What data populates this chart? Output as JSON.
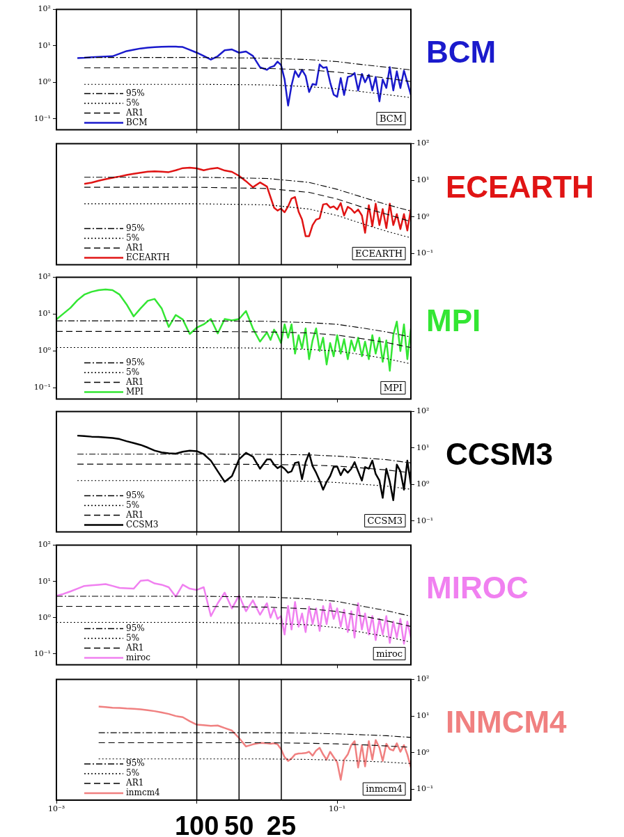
{
  "chart_data": [
    {
      "type": "line",
      "title": "BCM",
      "annotations": [
        "BCM"
      ],
      "log": "xy",
      "legend": "bottom left",
      "tick_labels": "y",
      "xlim": [
        0.001,
        0.335
      ],
      "xticks": [
        {
          "value": 0.01,
          "label": null
        },
        {
          "value": 0.1,
          "label": null
        }
      ],
      "ylim": [
        0.05,
        100
      ],
      "yticks": [
        {
          "value": 0.1,
          "label": "10⁻¹"
        },
        {
          "value": 1,
          "label": "10⁰"
        },
        {
          "value": 10,
          "label": "10¹"
        },
        {
          "value": 100,
          "label": "10²"
        }
      ],
      "ref_lines": [
        {
          "axis": "x",
          "value": 0.01
        },
        {
          "axis": "x",
          "value": 0.02
        },
        {
          "axis": "x",
          "value": 0.04
        }
      ],
      "series": [
        {
          "name": "95%",
          "color": "#000000",
          "line_style": "dashdot",
          "x": [
            0.00158,
            0.01,
            0.0316,
            0.0631,
            0.1,
            0.158,
            0.224,
            0.335
          ],
          "values": [
            4.8,
            4.8,
            4.6,
            4.2,
            3.7,
            3.0,
            2.6,
            2.2
          ]
        },
        {
          "name": "5%",
          "color": "#000000",
          "line_style": "dotted",
          "x": [
            0.00158,
            0.01,
            0.0316,
            0.0631,
            0.1,
            0.158,
            0.224,
            0.335
          ],
          "values": [
            0.88,
            0.88,
            0.85,
            0.76,
            0.66,
            0.54,
            0.46,
            0.38
          ]
        },
        {
          "name": "AR1",
          "color": "#000000",
          "line_style": "dashed",
          "x": [
            0.00158,
            0.01,
            0.0316,
            0.0631,
            0.1,
            0.158,
            0.224,
            0.335
          ],
          "values": [
            2.5,
            2.5,
            2.4,
            2.2,
            1.9,
            1.55,
            1.3,
            1.05
          ]
        },
        {
          "name": "BCM",
          "color": "#1a1acc",
          "line_style": "solid",
          "x": [
            0.00141,
            0.00158,
            0.00178,
            0.002,
            0.00224,
            0.00251,
            0.00282,
            0.00316,
            0.00355,
            0.00398,
            0.00447,
            0.00501,
            0.00562,
            0.00631,
            0.00708,
            0.00794,
            0.00891,
            0.01,
            0.0112,
            0.0126,
            0.0141,
            0.0158,
            0.0178,
            0.02,
            0.0224,
            0.0251,
            0.0282,
            0.0316,
            0.0335,
            0.0355,
            0.0376,
            0.0398,
            0.0422,
            0.0447,
            0.0473,
            0.0501,
            0.0531,
            0.0562,
            0.0596,
            0.0631,
            0.0668,
            0.0708,
            0.075,
            0.0794,
            0.0841,
            0.0891,
            0.0944,
            0.1,
            0.106,
            0.112,
            0.119,
            0.126,
            0.133,
            0.141,
            0.15,
            0.158,
            0.168,
            0.178,
            0.188,
            0.2,
            0.211,
            0.224,
            0.237,
            0.251,
            0.266,
            0.282,
            0.299,
            0.316,
            0.335
          ],
          "values": [
            4.6,
            4.7,
            4.9,
            5.0,
            5.1,
            5.2,
            6.1,
            7.2,
            7.8,
            8.5,
            8.9,
            9.2,
            9.4,
            9.5,
            9.5,
            9.3,
            7.8,
            6.5,
            5.3,
            4.2,
            5.2,
            7.6,
            8.0,
            6.5,
            7.0,
            5.3,
            2.6,
            2.2,
            2.6,
            2.8,
            3.7,
            3.0,
            1.2,
            0.23,
            0.82,
            2.05,
            1.4,
            2.2,
            1.5,
            0.54,
            0.9,
            0.85,
            3.1,
            2.5,
            2.6,
            1.0,
            0.46,
            0.4,
            1.3,
            0.45,
            1.4,
            1.5,
            1.8,
            0.6,
            1.7,
            1.0,
            1.6,
            0.6,
            1.4,
            0.3,
            1.2,
            0.7,
            2.6,
            0.6,
            2.0,
            0.7,
            2.1,
            1.0,
            0.45
          ]
        }
      ]
    },
    {
      "type": "line",
      "title": "ECEARTH",
      "annotations": [
        "ECEARTH"
      ],
      "log": "xy",
      "legend": "bottom left",
      "tick_labels": "y",
      "xlim": [
        0.001,
        0.335
      ],
      "xticks": [
        {
          "value": 0.01,
          "label": null
        },
        {
          "value": 0.1,
          "label": null
        }
      ],
      "ylim": [
        0.05,
        100
      ],
      "yticks": [
        {
          "value": 0.1,
          "label": "10⁻¹"
        },
        {
          "value": 1,
          "label": "10⁰"
        },
        {
          "value": 10,
          "label": "10¹"
        },
        {
          "value": 100,
          "label": "10²"
        }
      ],
      "ref_lines": [
        {
          "axis": "x",
          "value": 0.01
        },
        {
          "axis": "x",
          "value": 0.02
        },
        {
          "axis": "x",
          "value": 0.04
        }
      ],
      "series": [
        {
          "name": "95%",
          "color": "#000000",
          "line_style": "dashdot",
          "x": [
            0.00158,
            0.01,
            0.0316,
            0.0631,
            0.1,
            0.158,
            0.224,
            0.335
          ],
          "values": [
            12.2,
            12.2,
            11.3,
            8.8,
            5.7,
            3.3,
            2.2,
            1.45
          ]
        },
        {
          "name": "5%",
          "color": "#000000",
          "line_style": "dotted",
          "x": [
            0.00158,
            0.01,
            0.0316,
            0.0631,
            0.1,
            0.158,
            0.224,
            0.335
          ],
          "values": [
            2.3,
            2.3,
            2.15,
            1.65,
            1.1,
            0.62,
            0.41,
            0.27
          ]
        },
        {
          "name": "AR1",
          "color": "#000000",
          "line_style": "dashed",
          "x": [
            0.00158,
            0.01,
            0.0316,
            0.0631,
            0.1,
            0.158,
            0.224,
            0.335
          ],
          "values": [
            6.5,
            6.5,
            6.0,
            4.7,
            3.1,
            1.75,
            1.2,
            0.75
          ]
        },
        {
          "name": "ECEARTH",
          "color": "#e01414",
          "line_style": "solid",
          "x": [
            0.00158,
            0.00178,
            0.002,
            0.00224,
            0.00251,
            0.00282,
            0.00316,
            0.00355,
            0.00398,
            0.00447,
            0.00501,
            0.00562,
            0.00631,
            0.00708,
            0.00794,
            0.00891,
            0.01,
            0.0112,
            0.0126,
            0.0141,
            0.0158,
            0.0178,
            0.02,
            0.0224,
            0.0251,
            0.0282,
            0.0316,
            0.0335,
            0.0355,
            0.0376,
            0.0398,
            0.0422,
            0.0447,
            0.0473,
            0.0501,
            0.0531,
            0.0562,
            0.0596,
            0.0631,
            0.0668,
            0.0708,
            0.075,
            0.0794,
            0.0841,
            0.0891,
            0.0944,
            0.1,
            0.106,
            0.112,
            0.119,
            0.126,
            0.133,
            0.141,
            0.15,
            0.158,
            0.168,
            0.178,
            0.188,
            0.2,
            0.211,
            0.224,
            0.237,
            0.251,
            0.266,
            0.282,
            0.299,
            0.316,
            0.335
          ],
          "values": [
            8.0,
            8.7,
            9.8,
            10.8,
            11.8,
            12.8,
            14,
            15.2,
            16.2,
            17.3,
            17.6,
            17.3,
            16.8,
            18.8,
            21.6,
            22.3,
            21.2,
            18.9,
            20.9,
            21.9,
            18.6,
            17.1,
            13.3,
            9.5,
            6.5,
            8.8,
            6.8,
            3.5,
            1.8,
            1.5,
            1.7,
            1.35,
            1.95,
            3.2,
            3.5,
            1.4,
            0.85,
            0.3,
            0.3,
            0.6,
            0.85,
            0.92,
            2.2,
            2.3,
            1.8,
            1.95,
            1.6,
            2.4,
            1.1,
            1.9,
            1.65,
            1.3,
            1.6,
            1.1,
            0.37,
            2.1,
            0.56,
            2.3,
            0.6,
            1.65,
            0.5,
            2.3,
            0.6,
            1.2,
            0.47,
            1.2,
            0.43,
            1.65
          ]
        }
      ]
    },
    {
      "type": "line",
      "title": "MPI",
      "annotations": [
        "MPI"
      ],
      "log": "xy",
      "legend": "bottom left",
      "tick_labels": "y",
      "xlim": [
        0.001,
        0.335
      ],
      "xticks": [
        {
          "value": 0.01,
          "label": null
        },
        {
          "value": 0.1,
          "label": null
        }
      ],
      "ylim": [
        0.05,
        100
      ],
      "yticks": [
        {
          "value": 0.1,
          "label": "10⁻¹"
        },
        {
          "value": 1,
          "label": "10⁰"
        },
        {
          "value": 10,
          "label": "10¹"
        },
        {
          "value": 100,
          "label": "10²"
        }
      ],
      "ref_lines": [
        {
          "axis": "x",
          "value": 0.01
        },
        {
          "axis": "x",
          "value": 0.02
        },
        {
          "axis": "x",
          "value": 0.04
        }
      ],
      "series": [
        {
          "name": "95%",
          "color": "#000000",
          "line_style": "dashdot",
          "x": [
            0.001,
            0.01,
            0.0316,
            0.0631,
            0.1,
            0.158,
            0.224,
            0.335
          ],
          "values": [
            6.6,
            6.6,
            6.4,
            5.9,
            5.3,
            4.1,
            3.3,
            2.4
          ]
        },
        {
          "name": "5%",
          "color": "#000000",
          "line_style": "dotted",
          "x": [
            0.001,
            0.01,
            0.0316,
            0.0631,
            0.1,
            0.158,
            0.224,
            0.335
          ],
          "values": [
            1.24,
            1.24,
            1.2,
            1.1,
            1.0,
            0.77,
            0.62,
            0.45
          ]
        },
        {
          "name": "AR1",
          "color": "#000000",
          "line_style": "dashed",
          "x": [
            0.001,
            0.01,
            0.0316,
            0.0631,
            0.1,
            0.158,
            0.224,
            0.335
          ],
          "values": [
            3.4,
            3.4,
            3.3,
            3.1,
            2.7,
            2.1,
            1.7,
            1.24
          ]
        },
        {
          "name": "MPI",
          "color": "#33e633",
          "line_style": "solid",
          "x": [
            0.001,
            0.00112,
            0.00126,
            0.00141,
            0.00158,
            0.00178,
            0.002,
            0.00224,
            0.00251,
            0.00282,
            0.00316,
            0.00355,
            0.00398,
            0.00447,
            0.00501,
            0.00562,
            0.00631,
            0.00708,
            0.00794,
            0.00891,
            0.01,
            0.0112,
            0.0126,
            0.0141,
            0.0158,
            0.0178,
            0.02,
            0.0224,
            0.0251,
            0.0282,
            0.0316,
            0.0335,
            0.0355,
            0.0376,
            0.0398,
            0.0422,
            0.0447,
            0.0473,
            0.0501,
            0.0531,
            0.0562,
            0.0596,
            0.0631,
            0.0668,
            0.0708,
            0.075,
            0.0794,
            0.0841,
            0.0891,
            0.0944,
            0.1,
            0.106,
            0.112,
            0.119,
            0.126,
            0.133,
            0.141,
            0.15,
            0.158,
            0.168,
            0.178,
            0.188,
            0.2,
            0.211,
            0.224,
            0.237,
            0.251,
            0.266,
            0.282,
            0.299,
            0.316,
            0.335
          ],
          "values": [
            7.2,
            10.3,
            14.9,
            23.8,
            34,
            40.5,
            44.9,
            47,
            44.9,
            34,
            18.5,
            8.7,
            14.4,
            23,
            25.9,
            14.4,
            4.5,
            9.5,
            7.2,
            2.9,
            4.3,
            5.3,
            7.4,
            3.0,
            7.4,
            6.8,
            7.4,
            12.2,
            4.1,
            1.8,
            3.2,
            2.0,
            3.8,
            2.7,
            1.65,
            5.3,
            2.3,
            5.3,
            0.85,
            2.7,
            1.18,
            4.1,
            0.6,
            1.95,
            4.1,
            1.0,
            2.3,
            0.43,
            1.65,
            0.72,
            2.7,
            0.85,
            2.1,
            0.6,
            1.95,
            1.0,
            2.3,
            0.72,
            1.8,
            0.6,
            2.7,
            0.85,
            2.3,
            0.51,
            1.95,
            0.29,
            2.7,
            6.3,
            1.0,
            5.3,
            0.6,
            4.1
          ]
        }
      ]
    },
    {
      "type": "line",
      "title": "CCSM3",
      "annotations": [
        "CCSM3"
      ],
      "log": "xy",
      "legend": "bottom left",
      "tick_labels": "y",
      "xlim": [
        0.001,
        0.335
      ],
      "xticks": [
        {
          "value": 0.01,
          "label": null
        },
        {
          "value": 0.1,
          "label": null
        }
      ],
      "ylim": [
        0.05,
        100
      ],
      "yticks": [
        {
          "value": 0.1,
          "label": "10⁻¹"
        },
        {
          "value": 1,
          "label": "10⁰"
        },
        {
          "value": 10,
          "label": "10¹"
        },
        {
          "value": 100,
          "label": "10²"
        }
      ],
      "ref_lines": [
        {
          "axis": "x",
          "value": 0.01
        },
        {
          "axis": "x",
          "value": 0.02
        },
        {
          "axis": "x",
          "value": 0.04
        }
      ],
      "series": [
        {
          "name": "95%",
          "color": "#000000",
          "line_style": "dashdot",
          "x": [
            0.00141,
            0.01,
            0.0316,
            0.0631,
            0.1,
            0.158,
            0.224,
            0.335
          ],
          "values": [
            6.8,
            6.8,
            6.7,
            6.5,
            6.0,
            5.3,
            4.8,
            3.9
          ]
        },
        {
          "name": "5%",
          "color": "#000000",
          "line_style": "dotted",
          "x": [
            0.00141,
            0.01,
            0.0316,
            0.0631,
            0.1,
            0.158,
            0.224,
            0.335
          ],
          "values": [
            1.28,
            1.28,
            1.27,
            1.22,
            1.13,
            1.0,
            0.9,
            0.74
          ]
        },
        {
          "name": "AR1",
          "color": "#000000",
          "line_style": "dashed",
          "x": [
            0.00141,
            0.01,
            0.0316,
            0.0631,
            0.1,
            0.158,
            0.224,
            0.335
          ],
          "values": [
            3.6,
            3.6,
            3.55,
            3.4,
            3.2,
            2.8,
            2.5,
            2.1
          ]
        },
        {
          "name": "CCSM3",
          "color": "#000000",
          "line_style": "solid",
          "x": [
            0.00141,
            0.00158,
            0.00178,
            0.002,
            0.00224,
            0.00251,
            0.00282,
            0.00316,
            0.00355,
            0.00398,
            0.00447,
            0.00501,
            0.00562,
            0.00631,
            0.00708,
            0.00794,
            0.00891,
            0.01,
            0.0112,
            0.0126,
            0.0141,
            0.0158,
            0.0178,
            0.02,
            0.0224,
            0.0251,
            0.0282,
            0.0316,
            0.0335,
            0.0355,
            0.0376,
            0.0398,
            0.0422,
            0.0447,
            0.0473,
            0.0501,
            0.0531,
            0.0562,
            0.0596,
            0.0631,
            0.0668,
            0.0708,
            0.075,
            0.0794,
            0.0841,
            0.0891,
            0.0944,
            0.1,
            0.106,
            0.112,
            0.119,
            0.126,
            0.133,
            0.141,
            0.15,
            0.158,
            0.168,
            0.178,
            0.188,
            0.2,
            0.211,
            0.224,
            0.237,
            0.251,
            0.266,
            0.282,
            0.299,
            0.316,
            0.335
          ],
          "values": [
            21.9,
            21.2,
            20.5,
            20.2,
            19.6,
            18.9,
            17.6,
            15.4,
            13.7,
            12.2,
            10.3,
            8.5,
            7.6,
            7.2,
            7.0,
            7.9,
            8.5,
            8.2,
            6.8,
            4.5,
            2.3,
            1.18,
            1.7,
            4.9,
            7.4,
            5.8,
            2.7,
            4.9,
            4.9,
            3.5,
            2.8,
            3.2,
            2.7,
            2.1,
            2.3,
            3.9,
            4.1,
            1.4,
            4.1,
            7.2,
            3.2,
            2.1,
            1.28,
            0.72,
            1.18,
            1.7,
            3.0,
            3.1,
            1.8,
            2.7,
            2.1,
            2.7,
            4.1,
            2.3,
            1.28,
            3.0,
            2.7,
            4.5,
            1.95,
            1.28,
            0.43,
            2.7,
            1.18,
            0.37,
            3.5,
            2.3,
            0.72,
            4.5,
            1.0
          ]
        }
      ]
    },
    {
      "type": "line",
      "title": "MIROC",
      "annotations": [
        "miroc"
      ],
      "log": "xy",
      "legend": "bottom left",
      "tick_labels": "y",
      "xlim": [
        0.001,
        0.335
      ],
      "xticks": [
        {
          "value": 0.01,
          "label": null
        },
        {
          "value": 0.1,
          "label": null
        }
      ],
      "ylim": [
        0.05,
        100
      ],
      "yticks": [
        {
          "value": 0.1,
          "label": "10⁻¹"
        },
        {
          "value": 1,
          "label": "10⁰"
        },
        {
          "value": 10,
          "label": "10¹"
        },
        {
          "value": 100,
          "label": "10²"
        }
      ],
      "ref_lines": [
        {
          "axis": "x",
          "value": 0.01
        },
        {
          "axis": "x",
          "value": 0.02
        },
        {
          "axis": "x",
          "value": 0.04
        }
      ],
      "series": [
        {
          "name": "95%",
          "color": "#000000",
          "line_style": "dashdot",
          "x": [
            0.001,
            0.01,
            0.0316,
            0.0631,
            0.1,
            0.158,
            0.224,
            0.335
          ],
          "values": [
            3.9,
            3.9,
            3.7,
            3.3,
            2.8,
            2.0,
            1.56,
            1.09
          ]
        },
        {
          "name": "5%",
          "color": "#000000",
          "line_style": "dotted",
          "x": [
            0.001,
            0.01,
            0.0316,
            0.0631,
            0.1,
            0.158,
            0.224,
            0.335
          ],
          "values": [
            0.74,
            0.74,
            0.7,
            0.63,
            0.53,
            0.38,
            0.3,
            0.21
          ]
        },
        {
          "name": "AR1",
          "color": "#000000",
          "line_style": "dashed",
          "x": [
            0.001,
            0.01,
            0.0316,
            0.0631,
            0.1,
            0.158,
            0.224,
            0.335
          ],
          "values": [
            2.05,
            2.05,
            1.95,
            1.75,
            1.48,
            1.07,
            0.82,
            0.57
          ]
        },
        {
          "name": "miroc",
          "color": "#f080f0",
          "line_style": "solid",
          "x": [
            0.001,
            0.00112,
            0.00126,
            0.00141,
            0.00158,
            0.00178,
            0.002,
            0.00224,
            0.00251,
            0.00282,
            0.00316,
            0.00355,
            0.00398,
            0.00447,
            0.00501,
            0.00562,
            0.00631,
            0.00708,
            0.00794,
            0.00891,
            0.01,
            0.0112,
            0.0126,
            0.0141,
            0.0158,
            0.0178,
            0.02,
            0.0224,
            0.0251,
            0.0282,
            0.0316,
            0.0335,
            0.0355,
            0.0376,
            0.0398,
            0.0422,
            0.0447,
            0.0473,
            0.0501,
            0.0531,
            0.0562,
            0.0596,
            0.0631,
            0.0668,
            0.0708,
            0.075,
            0.0794,
            0.0841,
            0.0891,
            0.0944,
            0.1,
            0.106,
            0.112,
            0.119,
            0.126,
            0.133,
            0.141,
            0.15,
            0.158,
            0.168,
            0.178,
            0.188,
            0.2,
            0.211,
            0.224,
            0.237,
            0.251,
            0.266,
            0.282,
            0.299,
            0.316,
            0.335
          ],
          "values": [
            4.0,
            4.5,
            5.3,
            6.3,
            7.5,
            7.8,
            8.1,
            8.4,
            7.5,
            6.6,
            6.5,
            6.3,
            10.4,
            10.9,
            8.8,
            8.1,
            6.9,
            3.8,
            8.1,
            6.3,
            5.8,
            6.9,
            1.1,
            2.5,
            4.9,
            1.8,
            4.1,
            1.5,
            3.0,
            1.2,
            2.5,
            1.0,
            1.8,
            0.92,
            1.1,
            0.34,
            2.1,
            0.47,
            2.7,
            0.56,
            1.3,
            0.4,
            2.0,
            0.66,
            1.8,
            0.43,
            2.1,
            0.66,
            2.5,
            0.92,
            1.8,
            0.56,
            1.65,
            0.4,
            1.5,
            0.28,
            2.5,
            0.47,
            1.3,
            0.34,
            1.1,
            0.24,
            0.92,
            0.34,
            1.1,
            0.2,
            0.78,
            0.28,
            0.92,
            0.19,
            0.78,
            0.28
          ]
        }
      ]
    },
    {
      "type": "line",
      "title": "INMCM4",
      "annotations": [
        "inmcm4",
        "100",
        "50",
        "25"
      ],
      "log": "xy",
      "legend": "bottom left",
      "xlim": [
        0.001,
        0.335
      ],
      "xticks": [
        {
          "value": 0.001,
          "label": "10⁻³"
        },
        {
          "value": 0.01,
          "label": null
        },
        {
          "value": 0.1,
          "label": "10⁻¹"
        }
      ],
      "ylim": [
        0.05,
        100
      ],
      "yticks": [
        {
          "value": 0.1,
          "label": "10⁻¹"
        },
        {
          "value": 1,
          "label": "10⁰"
        },
        {
          "value": 10,
          "label": "10¹"
        },
        {
          "value": 100,
          "label": "10²"
        }
      ],
      "ref_lines": [
        {
          "axis": "x",
          "value": 0.01
        },
        {
          "axis": "x",
          "value": 0.02
        },
        {
          "axis": "x",
          "value": 0.04
        }
      ],
      "series": [
        {
          "name": "95%",
          "color": "#000000",
          "line_style": "dashdot",
          "x": [
            0.002,
            0.01,
            0.0316,
            0.0631,
            0.1,
            0.158,
            0.224,
            0.335
          ],
          "values": [
            3.5,
            3.5,
            3.5,
            3.4,
            3.25,
            3.05,
            2.9,
            2.6
          ]
        },
        {
          "name": "5%",
          "color": "#000000",
          "line_style": "dotted",
          "x": [
            0.002,
            0.01,
            0.0316,
            0.0631,
            0.1,
            0.158,
            0.224,
            0.335
          ],
          "values": [
            0.67,
            0.67,
            0.67,
            0.65,
            0.62,
            0.58,
            0.55,
            0.5
          ]
        },
        {
          "name": "AR1",
          "color": "#000000",
          "line_style": "dashed",
          "x": [
            0.002,
            0.01,
            0.0316,
            0.0631,
            0.1,
            0.158,
            0.224,
            0.335
          ],
          "values": [
            1.86,
            1.86,
            1.86,
            1.8,
            1.73,
            1.62,
            1.52,
            1.4
          ]
        },
        {
          "name": "inmcm4",
          "color": "#f08080",
          "line_style": "solid",
          "x": [
            0.002,
            0.00224,
            0.00251,
            0.00282,
            0.00316,
            0.00355,
            0.00398,
            0.00447,
            0.00501,
            0.00562,
            0.00631,
            0.00708,
            0.00794,
            0.00891,
            0.01,
            0.0112,
            0.0126,
            0.0141,
            0.0158,
            0.0178,
            0.02,
            0.0224,
            0.0251,
            0.0282,
            0.0316,
            0.0335,
            0.0355,
            0.0376,
            0.0398,
            0.0422,
            0.0447,
            0.0473,
            0.0501,
            0.0531,
            0.0562,
            0.0596,
            0.0631,
            0.0668,
            0.0708,
            0.075,
            0.0794,
            0.0841,
            0.0891,
            0.0944,
            0.1,
            0.106,
            0.112,
            0.119,
            0.126,
            0.133,
            0.141,
            0.15,
            0.158,
            0.168,
            0.178,
            0.188,
            0.2,
            0.211,
            0.224,
            0.237,
            0.251,
            0.266,
            0.282,
            0.299,
            0.316,
            0.335
          ],
          "values": [
            18.1,
            17.5,
            16.9,
            16.6,
            16.1,
            15.8,
            15.3,
            14.5,
            13.6,
            12.5,
            11.4,
            10,
            9.3,
            7.2,
            5.8,
            5.6,
            5.4,
            5.5,
            4.7,
            4.0,
            2.5,
            1.47,
            1.68,
            1.83,
            1.8,
            1.74,
            1.8,
            1.68,
            1.24,
            0.75,
            0.59,
            0.69,
            0.89,
            0.94,
            0.95,
            0.97,
            1.05,
            0.82,
            1.14,
            1.35,
            0.89,
            0.64,
            1.05,
            0.75,
            0.54,
            0.18,
            0.64,
            0.89,
            1.6,
            2.05,
            0.39,
            1.6,
            0.42,
            2.05,
            0.64,
            2.2,
            1.35,
            0.59,
            1.74,
            1.24,
            1.14,
            1.8,
            1.05,
            1.6,
            0.89,
            0.39
          ]
        }
      ]
    }
  ]
}
